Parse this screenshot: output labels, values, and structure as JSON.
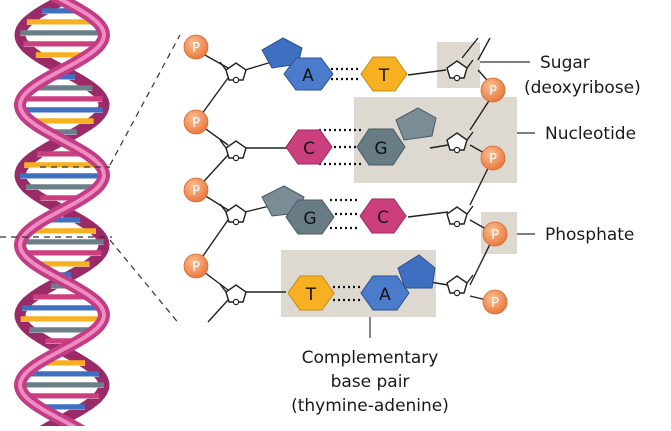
{
  "labels": {
    "sugar_line1": "Sugar",
    "sugar_line2": "(deoxyribose)",
    "nucleotide": "Nucleotide",
    "phosphate": "Phosphate",
    "pair_line1": "Complementary",
    "pair_line2": "base pair",
    "pair_line3": "(thymine-adenine)"
  },
  "phosphate_symbol": "P",
  "base_pairs": [
    {
      "left": "A",
      "right": "T"
    },
    {
      "left": "C",
      "right": "G"
    },
    {
      "left": "G",
      "right": "C"
    },
    {
      "left": "T",
      "right": "A"
    }
  ],
  "colors": {
    "adenine": "#3f6fc0",
    "thymine": "#f6b021",
    "cytosine": "#cc3f7f",
    "guanine": "#6b7f89",
    "phosphate": "#f0894f",
    "highlight": "#ddd8d0",
    "helix_backbone": "#b8357d"
  }
}
